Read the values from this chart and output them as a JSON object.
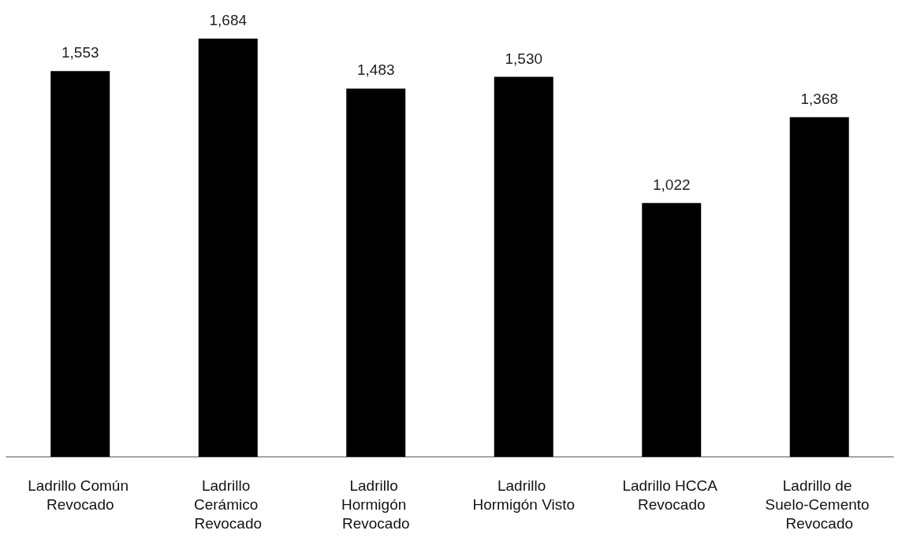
{
  "chart_data": {
    "type": "bar",
    "categories": [
      "Ladrillo Común Revocado",
      "Ladrillo Cerámico Revocado",
      "Ladrillo Hormigón Revocado",
      "Ladrillo Hormigón Visto",
      "Ladrillo HCCA Revocado",
      "Ladrillo de Suelo-Cemento Revocado"
    ],
    "values": [
      1553,
      1684,
      1483,
      1530,
      1022,
      1368
    ],
    "value_labels": [
      "1,553",
      "1,684",
      "1,483",
      "1,530",
      "1,022",
      "1,368"
    ],
    "color": "#000000"
  }
}
